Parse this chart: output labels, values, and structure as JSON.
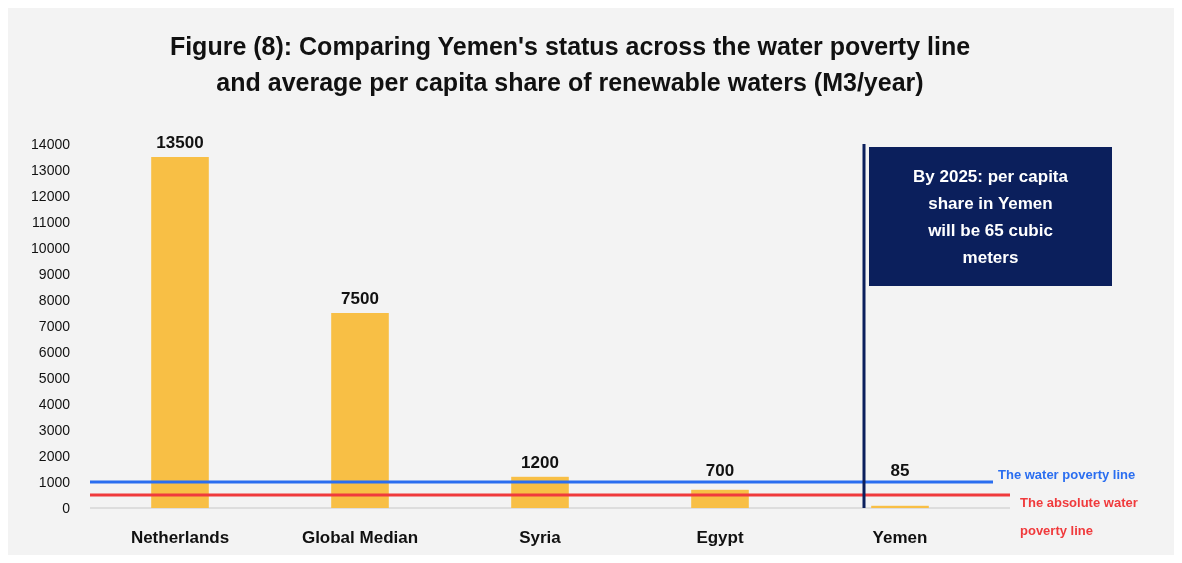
{
  "chart_data": {
    "type": "bar",
    "title": "Figure (8): Comparing Yemen's status across the water poverty line and average per capita share of renewable waters (M3/year)",
    "categories": [
      "Netherlands",
      "Global Median",
      "Syria",
      "Egypt",
      "Yemen"
    ],
    "values": [
      13500,
      7500,
      1200,
      700,
      85
    ],
    "color": "#f8bf45",
    "ylim": [
      0,
      14000
    ],
    "yticks": [
      0,
      1000,
      2000,
      3000,
      4000,
      5000,
      6000,
      7000,
      8000,
      9000,
      10000,
      11000,
      12000,
      13000,
      14000
    ],
    "data_labels": true,
    "ref_lines": [
      {
        "axis": "y",
        "value": 1000,
        "label": "The water poverty line",
        "color": "#2a6ef0"
      },
      {
        "axis": "y",
        "value": 500,
        "label": "The absolute water poverty line",
        "color": "#f03a3c"
      },
      {
        "axis": "x",
        "value": "Yemen",
        "color": "#0b1f5c"
      }
    ],
    "annotations": [
      "By 2025: per capita share in Yemen will be 65 cubic meters"
    ]
  }
}
